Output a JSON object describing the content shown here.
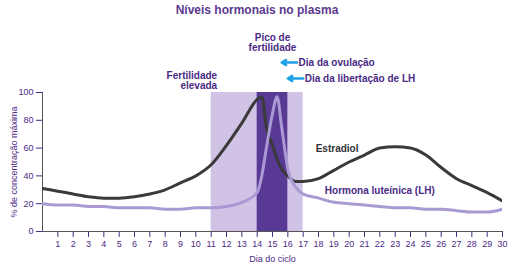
{
  "chart_data": {
    "type": "line",
    "title": "Níveis hormonais no plasma",
    "x_label": "Dia do ciclo",
    "y_label": "% de concentração máxima",
    "x": [
      0,
      1,
      2,
      3,
      4,
      5,
      6,
      7,
      8,
      9,
      10,
      11,
      12,
      13,
      14,
      14.3,
      14.6,
      15,
      15.3,
      15.6,
      16,
      16.5,
      17,
      18,
      19,
      20,
      21,
      22,
      23,
      24,
      25,
      26,
      27,
      28,
      29,
      30
    ],
    "xlim": [
      0,
      30
    ],
    "xticks": [
      1,
      2,
      3,
      4,
      5,
      6,
      7,
      8,
      9,
      10,
      11,
      12,
      13,
      14,
      15,
      16,
      17,
      18,
      19,
      20,
      21,
      22,
      23,
      24,
      25,
      26,
      27,
      28,
      29,
      30
    ],
    "ylim": [
      0,
      100
    ],
    "yticks": [
      0,
      20,
      40,
      60,
      80,
      100
    ],
    "grid": false,
    "series": [
      {
        "name": "Estradiol",
        "color": "#3a3a3a",
        "values": [
          31,
          29,
          27,
          25,
          24,
          24,
          25,
          27,
          30,
          35,
          40,
          48,
          62,
          78,
          95,
          97,
          75,
          62,
          52,
          45,
          40,
          36,
          36,
          38,
          44,
          50,
          55,
          60,
          61,
          60,
          55,
          46,
          38,
          33,
          28,
          22
        ]
      },
      {
        "name": "Hormona luteínica (LH)",
        "color": "#a99ad4",
        "values": [
          20,
          19,
          19,
          18,
          18,
          17,
          17,
          17,
          16,
          16,
          17,
          17,
          18,
          21,
          28,
          40,
          60,
          85,
          97,
          75,
          45,
          32,
          27,
          24,
          21,
          20,
          19,
          18,
          17,
          17,
          16,
          16,
          15,
          14,
          14,
          16
        ]
      }
    ],
    "bands": [
      {
        "label": "Fertilidade elevada",
        "x": [
          11,
          17
        ],
        "color": "#cbbce2"
      },
      {
        "label": "Pico de fertilidade",
        "x": [
          14,
          16
        ],
        "color": "#4a2a8a"
      }
    ],
    "annotations": [
      {
        "text": "Dia da ovulação",
        "x": 15.6
      },
      {
        "text": "Dia da libertação de LH",
        "x": 16
      }
    ]
  }
}
